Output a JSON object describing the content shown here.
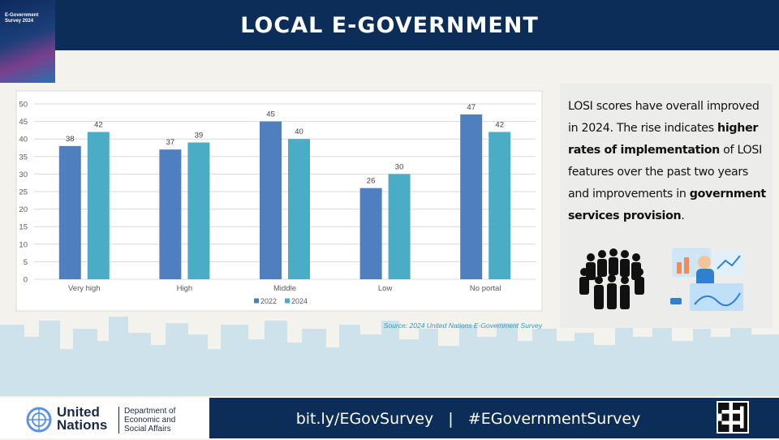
{
  "header": {
    "title": "LOCAL E-GOVERNMENT",
    "cover_title": "E-Government Survey 2024"
  },
  "chart_data": {
    "type": "bar",
    "categories": [
      "Very high",
      "High",
      "Middle",
      "Low",
      "No portal"
    ],
    "series": [
      {
        "name": "2022",
        "color": "#4f7fbf",
        "values": [
          38,
          37,
          45,
          26,
          47
        ]
      },
      {
        "name": "2024",
        "color": "#4bacc6",
        "values": [
          42,
          39,
          40,
          30,
          42
        ]
      }
    ],
    "ylim": [
      0,
      50
    ],
    "yticks": [
      0,
      5,
      10,
      15,
      20,
      25,
      30,
      35,
      40,
      45,
      50
    ],
    "grid": true,
    "legend": "bottom",
    "data_labels": true,
    "source": "Source: 2024 United Nations E-Government Survey"
  },
  "panel": {
    "text": [
      "LOSI scores have overall improved in 2024. The rise indicates ",
      "higher rates of implementation",
      " of LOSI features over the past two years and improvements in ",
      "government services provision",
      "."
    ]
  },
  "footer": {
    "org": "United Nations",
    "department": "Department of Economic and Social Affairs",
    "link": "bit.ly/EGovSurvey",
    "separator": "|",
    "hashtag": "#EGovernmentSurvey"
  }
}
